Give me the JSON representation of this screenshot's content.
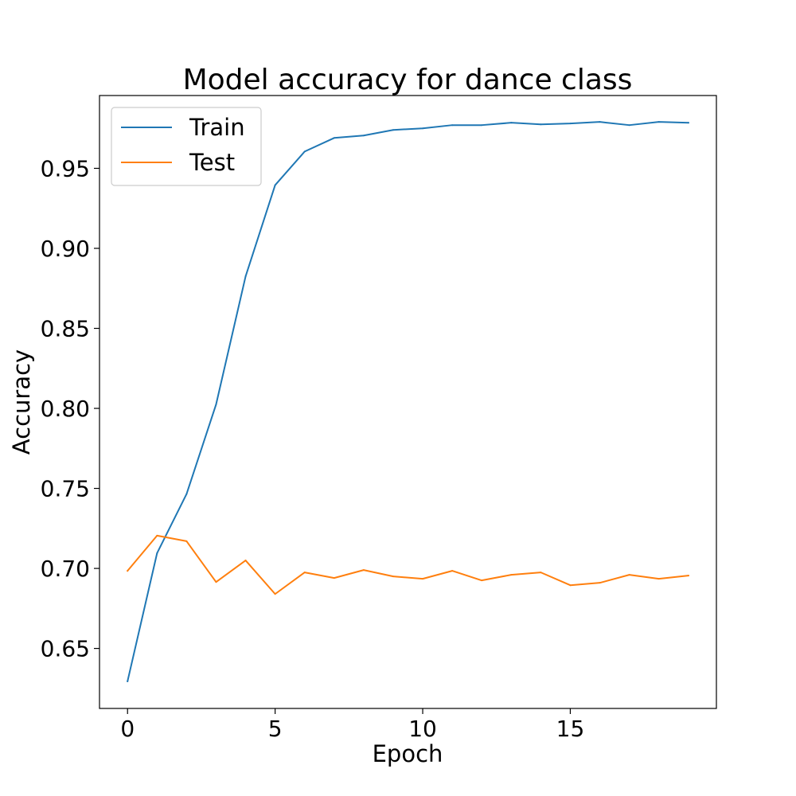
{
  "chart_data": {
    "type": "line",
    "title": "Model accuracy for dance class",
    "xlabel": "Epoch",
    "ylabel": "Accuracy",
    "xlim": [
      -0.95,
      19.95
    ],
    "ylim": [
      0.6125,
      0.9955
    ],
    "xticks": [
      0,
      5,
      10,
      15
    ],
    "xtick_labels": [
      "0",
      "5",
      "10",
      "15"
    ],
    "yticks": [
      0.65,
      0.7,
      0.75,
      0.8,
      0.85,
      0.9,
      0.95
    ],
    "ytick_labels": [
      "0.65",
      "0.70",
      "0.75",
      "0.80",
      "0.85",
      "0.90",
      "0.95"
    ],
    "grid": false,
    "legend": {
      "placement": "top-left",
      "entries": [
        "Train",
        "Test"
      ]
    },
    "x": [
      0,
      1,
      2,
      3,
      4,
      5,
      6,
      7,
      8,
      9,
      10,
      11,
      12,
      13,
      14,
      15,
      16,
      17,
      18,
      19
    ],
    "series": [
      {
        "name": "Train",
        "color": "#1f77b4",
        "values": [
          0.6295,
          0.7095,
          0.7465,
          0.8025,
          0.8825,
          0.9395,
          0.9605,
          0.969,
          0.9705,
          0.974,
          0.975,
          0.977,
          0.977,
          0.9785,
          0.9775,
          0.978,
          0.979,
          0.977,
          0.979,
          0.9785
        ]
      },
      {
        "name": "Test",
        "color": "#ff7f0e",
        "values": [
          0.6985,
          0.7205,
          0.717,
          0.6915,
          0.705,
          0.684,
          0.6975,
          0.694,
          0.699,
          0.695,
          0.6935,
          0.6985,
          0.6925,
          0.696,
          0.6975,
          0.6895,
          0.691,
          0.696,
          0.6935,
          0.6955
        ]
      }
    ]
  }
}
